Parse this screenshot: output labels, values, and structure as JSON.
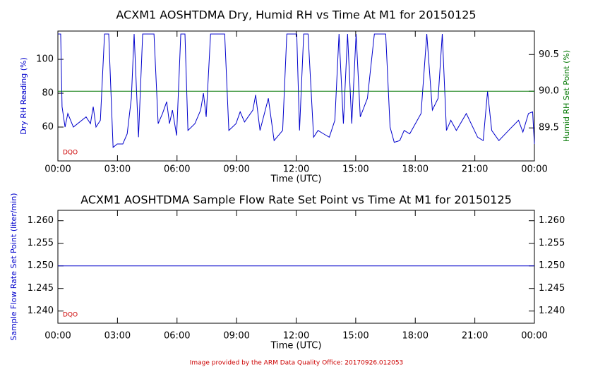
{
  "chart_data": [
    {
      "type": "line",
      "title": "ACXM1 AOSHTDMA Dry, Humid RH vs Time At M1 for 20150125",
      "xlabel": "Time (UTC)",
      "ylabel": "Dry RH Reading (%)",
      "ylabel_color": "#0000cc",
      "y2label": "Humid RH Set Point (%)",
      "y2label_color": "#007700",
      "annotation": "DQO",
      "xlim": [
        0,
        24
      ],
      "xticks": [
        {
          "value": 0,
          "label": "00:00"
        },
        {
          "value": 3,
          "label": "03:00"
        },
        {
          "value": 6,
          "label": "06:00"
        },
        {
          "value": 9,
          "label": "09:00"
        },
        {
          "value": 12,
          "label": "12:00"
        },
        {
          "value": 15,
          "label": "15:00"
        },
        {
          "value": 18,
          "label": "18:00"
        },
        {
          "value": 21,
          "label": "21:00"
        },
        {
          "value": 24,
          "label": "00:00"
        }
      ],
      "ylim": [
        40,
        116.7
      ],
      "yticks": [
        60,
        80,
        100
      ],
      "y2lim": [
        89.05,
        90.82
      ],
      "y2ticks": [
        89.5,
        {
          "value": 90.0,
          "label": "90.0"
        },
        90.5
      ],
      "series": [
        {
          "name": "Dry RH Reading",
          "color": "#0000cc",
          "x": [
            0,
            0.14,
            0.21,
            0.36,
            0.5,
            0.78,
            1.42,
            1.64,
            1.78,
            1.92,
            2.14,
            2.35,
            2.56,
            2.78,
            2.99,
            3.27,
            3.49,
            3.7,
            3.84,
            4.06,
            4.27,
            4.84,
            5.05,
            5.27,
            5.48,
            5.62,
            5.77,
            5.98,
            6.19,
            6.4,
            6.55,
            6.9,
            7.19,
            7.33,
            7.47,
            7.69,
            8.4,
            8.61,
            8.97,
            9.18,
            9.4,
            9.82,
            9.96,
            10.18,
            10.6,
            10.89,
            11.32,
            11.53,
            12.03,
            12.17,
            12.38,
            12.6,
            12.88,
            13.1,
            13.38,
            13.67,
            13.95,
            14.16,
            14.38,
            14.59,
            14.8,
            15.02,
            15.23,
            15.59,
            15.94,
            16.51,
            16.73,
            16.94,
            17.22,
            17.44,
            17.72,
            18.29,
            18.58,
            18.86,
            19.15,
            19.36,
            19.57,
            19.79,
            20.07,
            20.57,
            21.14,
            21.42,
            21.64,
            21.85,
            22.21,
            22.78,
            23.2,
            23.42,
            23.7,
            23.91,
            24
          ],
          "values": [
            115,
            115,
            72,
            60,
            68,
            60,
            66,
            62,
            72,
            60,
            64,
            115,
            115,
            48,
            50,
            50,
            56,
            77,
            115,
            54,
            115,
            115,
            62,
            68,
            75,
            62,
            70,
            55,
            115,
            115,
            58,
            62,
            70,
            80,
            66,
            115,
            115,
            58,
            62,
            69,
            63,
            70,
            79,
            58,
            77,
            52,
            58,
            115,
            115,
            58,
            115,
            115,
            54,
            58,
            56,
            54,
            64,
            115,
            62,
            115,
            62,
            115,
            66,
            77,
            115,
            115,
            60,
            51,
            52,
            58,
            56,
            68,
            115,
            70,
            77,
            115,
            58,
            64,
            58,
            68,
            54,
            52,
            81,
            58,
            52,
            59,
            64,
            57,
            68,
            69,
            50
          ]
        },
        {
          "name": "Humid RH Set Point",
          "color": "#007700",
          "axis": "y2",
          "x": [
            0,
            24
          ],
          "values": [
            90.0,
            90.0
          ]
        }
      ]
    },
    {
      "type": "line",
      "title": "ACXM1 AOSHTDMA Sample Flow Rate Set Point vs Time At M1 for 20150125",
      "xlabel": "Time (UTC)",
      "ylabel": "Sample Flow Rate Set Point (liter/min)",
      "ylabel_color": "#0000cc",
      "annotation": "DQO",
      "xlim": [
        0,
        24
      ],
      "xticks": [
        {
          "value": 0,
          "label": "00:00"
        },
        {
          "value": 3,
          "label": "03:00"
        },
        {
          "value": 6,
          "label": "06:00"
        },
        {
          "value": 9,
          "label": "09:00"
        },
        {
          "value": 12,
          "label": "12:00"
        },
        {
          "value": 15,
          "label": "15:00"
        },
        {
          "value": 18,
          "label": "18:00"
        },
        {
          "value": 21,
          "label": "21:00"
        },
        {
          "value": 24,
          "label": "00:00"
        }
      ],
      "ylim": [
        1.2373,
        1.2623
      ],
      "yticks": [
        {
          "value": 1.24,
          "label": "1.240"
        },
        {
          "value": 1.245,
          "label": "1.245"
        },
        {
          "value": 1.25,
          "label": "1.250"
        },
        {
          "value": 1.255,
          "label": "1.255"
        },
        {
          "value": 1.26,
          "label": "1.260"
        }
      ],
      "y2lim": [
        1.2373,
        1.2623
      ],
      "y2ticks": [
        {
          "value": 1.24,
          "label": "1.240"
        },
        {
          "value": 1.245,
          "label": "1.245"
        },
        {
          "value": 1.25,
          "label": "1.250"
        },
        {
          "value": 1.255,
          "label": "1.255"
        },
        {
          "value": 1.26,
          "label": "1.260"
        }
      ],
      "series": [
        {
          "name": "Sample Flow Rate Set Point",
          "color": "#0000cc",
          "x": [
            0,
            24
          ],
          "values": [
            1.25,
            1.25
          ]
        }
      ]
    }
  ],
  "footer": "Image provided by the ARM Data Quality Office: 20170926.012053"
}
